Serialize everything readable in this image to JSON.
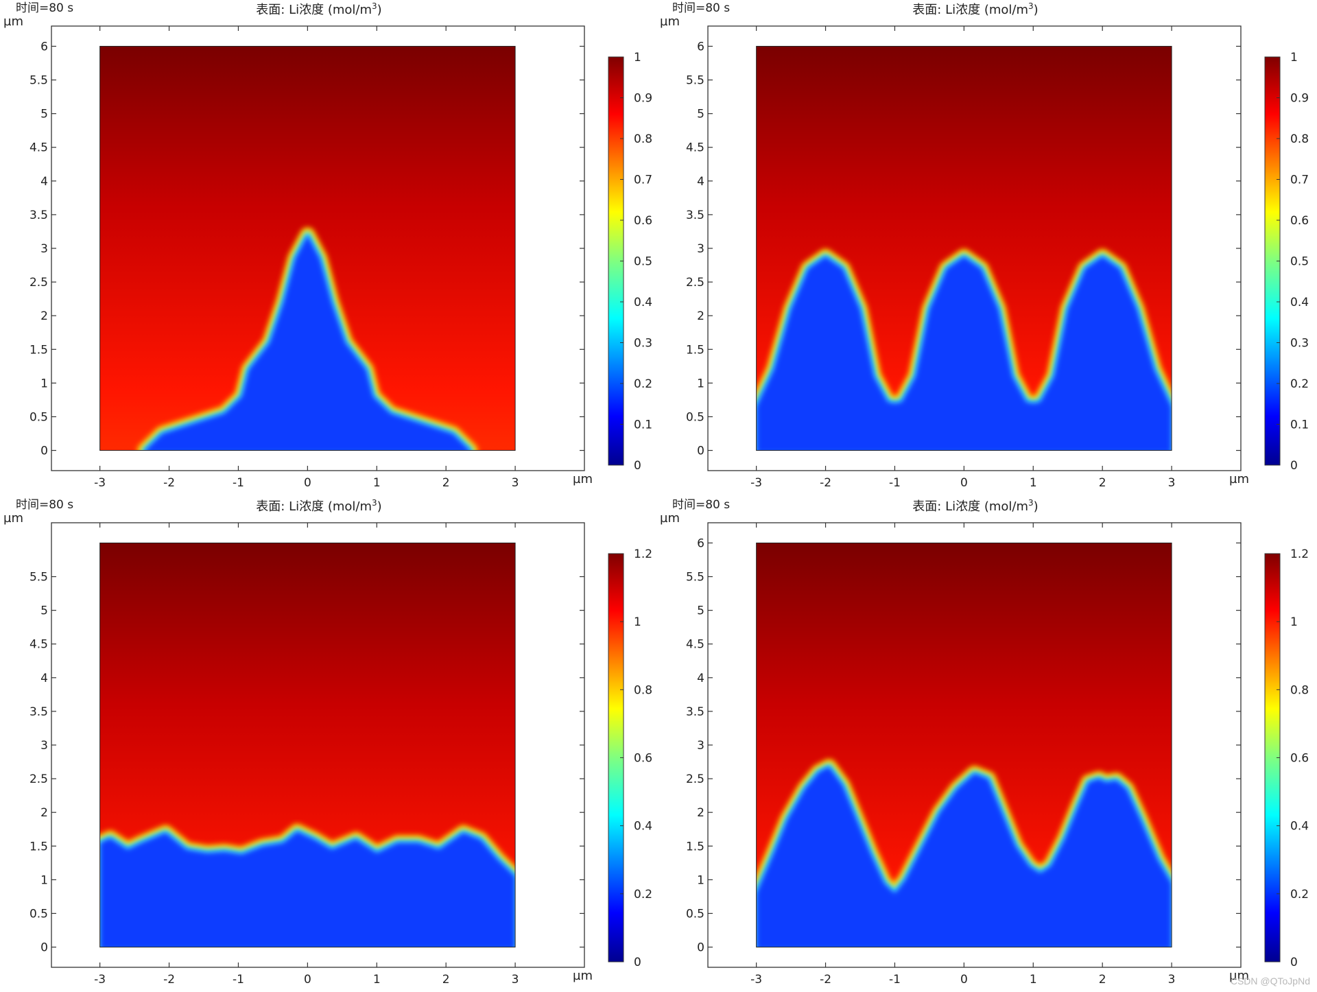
{
  "chart_data": [
    {
      "type": "heatmap",
      "time_label": "时间=80 s",
      "title_prefix": "表面: Li浓度 (mol/m",
      "title_sup": "3",
      "title_suffix": ")",
      "xlabel": "µm",
      "ylabel": "µm",
      "xlim": [
        -3.7,
        4.0
      ],
      "ylim": [
        -0.3,
        6.3
      ],
      "domain_x": [
        -3,
        3
      ],
      "domain_y": [
        0,
        6
      ],
      "xticks": [
        -3,
        -2,
        -1,
        0,
        1,
        2,
        3
      ],
      "xtick_labels": [
        "-3",
        "-2",
        "-1",
        "0",
        "1",
        "2",
        "3"
      ],
      "yticks": [
        0,
        0.5,
        1,
        1.5,
        2,
        2.5,
        3,
        3.5,
        4,
        4.5,
        5,
        5.5,
        6
      ],
      "ytick_labels": [
        "0",
        "0.5",
        "1",
        "1.5",
        "2",
        "2.5",
        "3",
        "3.5",
        "4",
        "4.5",
        "5",
        "5.5",
        "6"
      ],
      "colorbar": {
        "range": [
          0,
          1
        ],
        "ticks": [
          0,
          0.1,
          0.2,
          0.3,
          0.4,
          0.5,
          0.6,
          0.7,
          0.8,
          0.9,
          1
        ],
        "tick_labels": [
          "0",
          "0.1",
          "0.2",
          "0.3",
          "0.4",
          "0.5",
          "0.6",
          "0.7",
          "0.8",
          "0.9",
          "1"
        ]
      },
      "dendrite_boundary": [
        [
          -2.35,
          0
        ],
        [
          -2.1,
          0.25
        ],
        [
          -1.2,
          0.55
        ],
        [
          -0.95,
          0.8
        ],
        [
          -0.85,
          1.2
        ],
        [
          -0.55,
          1.6
        ],
        [
          -0.35,
          2.2
        ],
        [
          -0.18,
          2.85
        ],
        [
          0,
          3.2
        ],
        [
          0.18,
          2.85
        ],
        [
          0.35,
          2.2
        ],
        [
          0.55,
          1.6
        ],
        [
          0.85,
          1.2
        ],
        [
          0.95,
          0.8
        ],
        [
          1.2,
          0.55
        ],
        [
          2.1,
          0.25
        ],
        [
          2.35,
          0
        ]
      ]
    },
    {
      "type": "heatmap",
      "time_label": "时间=80 s",
      "title_prefix": "表面: Li浓度 (mol/m",
      "title_sup": "3",
      "title_suffix": ")",
      "xlabel": "µm",
      "ylabel": "µm",
      "xlim": [
        -3.7,
        4.0
      ],
      "ylim": [
        -0.3,
        6.3
      ],
      "domain_x": [
        -3,
        3
      ],
      "domain_y": [
        0,
        6
      ],
      "xticks": [
        -3,
        -2,
        -1,
        0,
        1,
        2,
        3
      ],
      "xtick_labels": [
        "-3",
        "-2",
        "-1",
        "0",
        "1",
        "2",
        "3"
      ],
      "yticks": [
        0,
        0.5,
        1,
        1.5,
        2,
        2.5,
        3,
        3.5,
        4,
        4.5,
        5,
        5.5,
        6
      ],
      "ytick_labels": [
        "0",
        "0.5",
        "1",
        "1.5",
        "2",
        "2.5",
        "3",
        "3.5",
        "4",
        "4.5",
        "5",
        "5.5",
        "6"
      ],
      "colorbar": {
        "range": [
          0,
          1
        ],
        "ticks": [
          0,
          0.1,
          0.2,
          0.3,
          0.4,
          0.5,
          0.6,
          0.7,
          0.8,
          0.9,
          1
        ],
        "tick_labels": [
          "0",
          "0.1",
          "0.2",
          "0.3",
          "0.4",
          "0.5",
          "0.6",
          "0.7",
          "0.8",
          "0.9",
          "1"
        ]
      },
      "dendrite_boundary": [
        [
          -3,
          0.65
        ],
        [
          -2.75,
          1.2
        ],
        [
          -2.5,
          2.1
        ],
        [
          -2.25,
          2.7
        ],
        [
          -2,
          2.88
        ],
        [
          -1.75,
          2.7
        ],
        [
          -1.5,
          2.1
        ],
        [
          -1.3,
          1.1
        ],
        [
          -1.1,
          0.72
        ],
        [
          -1,
          0.7
        ],
        [
          -0.9,
          0.72
        ],
        [
          -0.7,
          1.1
        ],
        [
          -0.5,
          2.1
        ],
        [
          -0.25,
          2.7
        ],
        [
          0,
          2.88
        ],
        [
          0.25,
          2.7
        ],
        [
          0.5,
          2.1
        ],
        [
          0.7,
          1.1
        ],
        [
          0.9,
          0.72
        ],
        [
          1,
          0.7
        ],
        [
          1.1,
          0.72
        ],
        [
          1.3,
          1.1
        ],
        [
          1.5,
          2.1
        ],
        [
          1.75,
          2.7
        ],
        [
          2,
          2.88
        ],
        [
          2.25,
          2.7
        ],
        [
          2.5,
          2.1
        ],
        [
          2.75,
          1.2
        ],
        [
          3,
          0.65
        ]
      ]
    },
    {
      "type": "heatmap",
      "time_label": "时间=80 s",
      "title_prefix": "表面: Li浓度 (mol/m",
      "title_sup": "3",
      "title_suffix": ")",
      "xlabel": "µm",
      "ylabel": "µm",
      "xlim": [
        -3.7,
        4.0
      ],
      "ylim": [
        -0.3,
        6.3
      ],
      "domain_x": [
        -3,
        3
      ],
      "domain_y": [
        0,
        6
      ],
      "xticks": [
        -3,
        -2,
        -1,
        0,
        1,
        2,
        3
      ],
      "xtick_labels": [
        "-3",
        "-2",
        "-1",
        "0",
        "1",
        "2",
        "3"
      ],
      "yticks": [
        0,
        0.5,
        1,
        1.5,
        2,
        2.5,
        3,
        3.5,
        4,
        4.5,
        5,
        5.5
      ],
      "ytick_labels": [
        "0",
        "0.5",
        "1",
        "1.5",
        "2",
        "2.5",
        "3",
        "3.5",
        "4",
        "4.5",
        "5",
        "5.5"
      ],
      "colorbar": {
        "range": [
          0,
          1.2
        ],
        "ticks": [
          0,
          0.2,
          0.4,
          0.6,
          0.8,
          1,
          1.2
        ],
        "tick_labels": [
          "0",
          "0.2",
          "0.4",
          "0.6",
          "0.8",
          "1",
          "1.2"
        ]
      },
      "dendrite_boundary": [
        [
          -3,
          1.55
        ],
        [
          -2.85,
          1.62
        ],
        [
          -2.6,
          1.45
        ],
        [
          -2.4,
          1.55
        ],
        [
          -2.05,
          1.7
        ],
        [
          -1.75,
          1.45
        ],
        [
          -1.45,
          1.4
        ],
        [
          -1.2,
          1.42
        ],
        [
          -0.95,
          1.38
        ],
        [
          -0.65,
          1.5
        ],
        [
          -0.35,
          1.55
        ],
        [
          -0.15,
          1.72
        ],
        [
          0.1,
          1.6
        ],
        [
          0.35,
          1.45
        ],
        [
          0.7,
          1.6
        ],
        [
          1,
          1.4
        ],
        [
          1.3,
          1.55
        ],
        [
          1.6,
          1.55
        ],
        [
          1.9,
          1.45
        ],
        [
          2.25,
          1.7
        ],
        [
          2.5,
          1.6
        ],
        [
          2.75,
          1.3
        ],
        [
          3,
          1.05
        ]
      ]
    },
    {
      "type": "heatmap",
      "time_label": "时间=80 s",
      "title_prefix": "表面: Li浓度 (mol/m",
      "title_sup": "3",
      "title_suffix": ")",
      "xlabel": "µm",
      "ylabel": "µm",
      "xlim": [
        -3.7,
        4.0
      ],
      "ylim": [
        -0.3,
        6.3
      ],
      "domain_x": [
        -3,
        3
      ],
      "domain_y": [
        0,
        6
      ],
      "xticks": [
        -3,
        -2,
        -1,
        0,
        1,
        2,
        3
      ],
      "xtick_labels": [
        "-3",
        "-2",
        "-1",
        "0",
        "1",
        "2",
        "3"
      ],
      "yticks": [
        0,
        0.5,
        1,
        1.5,
        2,
        2.5,
        3,
        3.5,
        4,
        4.5,
        5,
        5.5,
        6
      ],
      "ytick_labels": [
        "0",
        "0.5",
        "1",
        "1.5",
        "2",
        "2.5",
        "3",
        "3.5",
        "4",
        "4.5",
        "5",
        "5.5",
        "6"
      ],
      "colorbar": {
        "range": [
          0,
          1.2
        ],
        "ticks": [
          0,
          0.2,
          0.4,
          0.6,
          0.8,
          1,
          1.2
        ],
        "tick_labels": [
          "0",
          "0.2",
          "0.4",
          "0.6",
          "0.8",
          "1",
          "1.2"
        ]
      },
      "dendrite_boundary": [
        [
          -3,
          0.8
        ],
        [
          -2.75,
          1.4
        ],
        [
          -2.55,
          1.9
        ],
        [
          -2.3,
          2.35
        ],
        [
          -2.1,
          2.6
        ],
        [
          -1.95,
          2.68
        ],
        [
          -1.75,
          2.4
        ],
        [
          -1.55,
          1.9
        ],
        [
          -1.35,
          1.4
        ],
        [
          -1.15,
          0.95
        ],
        [
          -1,
          0.8
        ],
        [
          -0.85,
          1.0
        ],
        [
          -0.6,
          1.5
        ],
        [
          -0.35,
          2.0
        ],
        [
          -0.1,
          2.35
        ],
        [
          0.15,
          2.58
        ],
        [
          0.35,
          2.5
        ],
        [
          0.55,
          2.0
        ],
        [
          0.75,
          1.5
        ],
        [
          0.95,
          1.2
        ],
        [
          1.1,
          1.1
        ],
        [
          1.25,
          1.2
        ],
        [
          1.45,
          1.6
        ],
        [
          1.65,
          2.1
        ],
        [
          1.8,
          2.45
        ],
        [
          1.95,
          2.5
        ],
        [
          2.05,
          2.45
        ],
        [
          2.2,
          2.48
        ],
        [
          2.35,
          2.35
        ],
        [
          2.55,
          1.9
        ],
        [
          2.8,
          1.3
        ],
        [
          3,
          0.95
        ]
      ]
    }
  ],
  "watermark": "CSDN @QToJpNd"
}
